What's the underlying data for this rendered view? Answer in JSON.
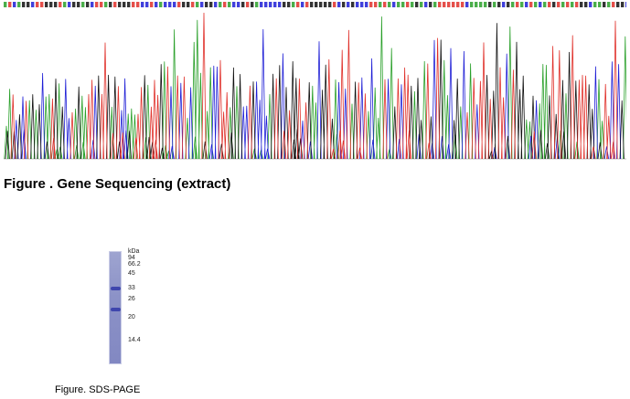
{
  "sequencing_figure": {
    "caption": "Figure . Gene Sequencing (extract)",
    "trace_colors": {
      "A": "#2aa02a",
      "C": "#1f1fd6",
      "G": "#111111",
      "T": "#e0302a"
    }
  },
  "gel_figure": {
    "caption": "Figure. SDS-PAGE",
    "lane_color": "#8c92c7",
    "band_color": "#3f46ad",
    "unit_label": "kDa",
    "marker_labels": [
      "94",
      "66.2",
      "45",
      "33",
      "26",
      "20",
      "14.4"
    ]
  }
}
